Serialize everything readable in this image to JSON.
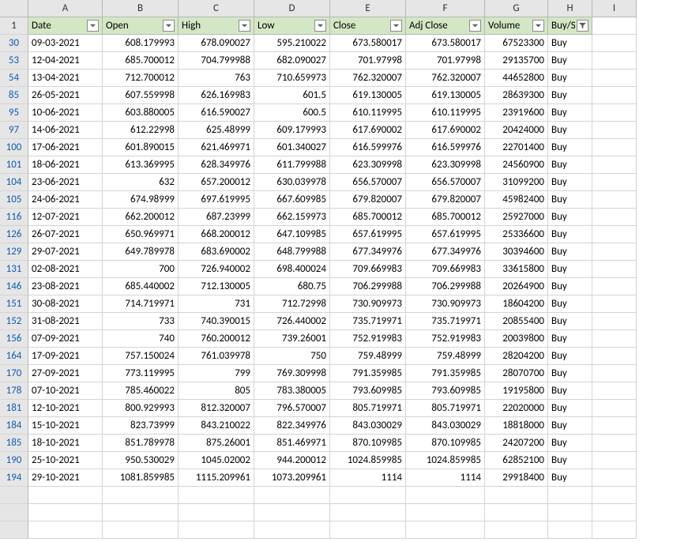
{
  "columns": [
    "A",
    "B",
    "C",
    "D",
    "E",
    "F",
    "G",
    "H",
    "I"
  ],
  "headers": [
    "Date",
    "Open",
    "High",
    "Low",
    "Close",
    "Adj Close",
    "Volume",
    "Buy/S"
  ],
  "header_row_num": 1,
  "rows": [
    {
      "n": 30,
      "date": "09-03-2021",
      "open": "608.179993",
      "high": "678.090027",
      "low": "595.210022",
      "close": "673.580017",
      "adj": "673.580017",
      "vol": "67523300",
      "bs": "Buy"
    },
    {
      "n": 53,
      "date": "12-04-2021",
      "open": "685.700012",
      "high": "704.799988",
      "low": "682.090027",
      "close": "701.97998",
      "adj": "701.97998",
      "vol": "29135700",
      "bs": "Buy"
    },
    {
      "n": 54,
      "date": "13-04-2021",
      "open": "712.700012",
      "high": "763",
      "low": "710.659973",
      "close": "762.320007",
      "adj": "762.320007",
      "vol": "44652800",
      "bs": "Buy"
    },
    {
      "n": 85,
      "date": "26-05-2021",
      "open": "607.559998",
      "high": "626.169983",
      "low": "601.5",
      "close": "619.130005",
      "adj": "619.130005",
      "vol": "28639300",
      "bs": "Buy"
    },
    {
      "n": 95,
      "date": "10-06-2021",
      "open": "603.880005",
      "high": "616.590027",
      "low": "600.5",
      "close": "610.119995",
      "adj": "610.119995",
      "vol": "23919600",
      "bs": "Buy"
    },
    {
      "n": 97,
      "date": "14-06-2021",
      "open": "612.22998",
      "high": "625.48999",
      "low": "609.179993",
      "close": "617.690002",
      "adj": "617.690002",
      "vol": "20424000",
      "bs": "Buy"
    },
    {
      "n": 100,
      "date": "17-06-2021",
      "open": "601.890015",
      "high": "621.469971",
      "low": "601.340027",
      "close": "616.599976",
      "adj": "616.599976",
      "vol": "22701400",
      "bs": "Buy"
    },
    {
      "n": 101,
      "date": "18-06-2021",
      "open": "613.369995",
      "high": "628.349976",
      "low": "611.799988",
      "close": "623.309998",
      "adj": "623.309998",
      "vol": "24560900",
      "bs": "Buy"
    },
    {
      "n": 104,
      "date": "23-06-2021",
      "open": "632",
      "high": "657.200012",
      "low": "630.039978",
      "close": "656.570007",
      "adj": "656.570007",
      "vol": "31099200",
      "bs": "Buy"
    },
    {
      "n": 105,
      "date": "24-06-2021",
      "open": "674.98999",
      "high": "697.619995",
      "low": "667.609985",
      "close": "679.820007",
      "adj": "679.820007",
      "vol": "45982400",
      "bs": "Buy"
    },
    {
      "n": 116,
      "date": "12-07-2021",
      "open": "662.200012",
      "high": "687.23999",
      "low": "662.159973",
      "close": "685.700012",
      "adj": "685.700012",
      "vol": "25927000",
      "bs": "Buy"
    },
    {
      "n": 126,
      "date": "26-07-2021",
      "open": "650.969971",
      "high": "668.200012",
      "low": "647.109985",
      "close": "657.619995",
      "adj": "657.619995",
      "vol": "25336600",
      "bs": "Buy"
    },
    {
      "n": 129,
      "date": "29-07-2021",
      "open": "649.789978",
      "high": "683.690002",
      "low": "648.799988",
      "close": "677.349976",
      "adj": "677.349976",
      "vol": "30394600",
      "bs": "Buy"
    },
    {
      "n": 131,
      "date": "02-08-2021",
      "open": "700",
      "high": "726.940002",
      "low": "698.400024",
      "close": "709.669983",
      "adj": "709.669983",
      "vol": "33615800",
      "bs": "Buy"
    },
    {
      "n": 146,
      "date": "23-08-2021",
      "open": "685.440002",
      "high": "712.130005",
      "low": "680.75",
      "close": "706.299988",
      "adj": "706.299988",
      "vol": "20264900",
      "bs": "Buy"
    },
    {
      "n": 151,
      "date": "30-08-2021",
      "open": "714.719971",
      "high": "731",
      "low": "712.72998",
      "close": "730.909973",
      "adj": "730.909973",
      "vol": "18604200",
      "bs": "Buy"
    },
    {
      "n": 152,
      "date": "31-08-2021",
      "open": "733",
      "high": "740.390015",
      "low": "726.440002",
      "close": "735.719971",
      "adj": "735.719971",
      "vol": "20855400",
      "bs": "Buy"
    },
    {
      "n": 156,
      "date": "07-09-2021",
      "open": "740",
      "high": "760.200012",
      "low": "739.26001",
      "close": "752.919983",
      "adj": "752.919983",
      "vol": "20039800",
      "bs": "Buy"
    },
    {
      "n": 164,
      "date": "17-09-2021",
      "open": "757.150024",
      "high": "761.039978",
      "low": "750",
      "close": "759.48999",
      "adj": "759.48999",
      "vol": "28204200",
      "bs": "Buy"
    },
    {
      "n": 170,
      "date": "27-09-2021",
      "open": "773.119995",
      "high": "799",
      "low": "769.309998",
      "close": "791.359985",
      "adj": "791.359985",
      "vol": "28070700",
      "bs": "Buy"
    },
    {
      "n": 178,
      "date": "07-10-2021",
      "open": "785.460022",
      "high": "805",
      "low": "783.380005",
      "close": "793.609985",
      "adj": "793.609985",
      "vol": "19195800",
      "bs": "Buy"
    },
    {
      "n": 181,
      "date": "12-10-2021",
      "open": "800.929993",
      "high": "812.320007",
      "low": "796.570007",
      "close": "805.719971",
      "adj": "805.719971",
      "vol": "22020000",
      "bs": "Buy"
    },
    {
      "n": 184,
      "date": "15-10-2021",
      "open": "823.73999",
      "high": "843.210022",
      "low": "822.349976",
      "close": "843.030029",
      "adj": "843.030029",
      "vol": "18818000",
      "bs": "Buy"
    },
    {
      "n": 185,
      "date": "18-10-2021",
      "open": "851.789978",
      "high": "875.26001",
      "low": "851.469971",
      "close": "870.109985",
      "adj": "870.109985",
      "vol": "24207200",
      "bs": "Buy"
    },
    {
      "n": 190,
      "date": "25-10-2021",
      "open": "950.530029",
      "high": "1045.02002",
      "low": "944.200012",
      "close": "1024.859985",
      "adj": "1024.859985",
      "vol": "62852100",
      "bs": "Buy"
    },
    {
      "n": 194,
      "date": "29-10-2021",
      "open": "1081.859985",
      "high": "1115.209961",
      "low": "1073.209961",
      "close": "1114",
      "adj": "1114",
      "vol": "29918400",
      "bs": "Buy"
    }
  ],
  "trailing_blank_rows": 3,
  "colors": {
    "header_bg": "#d4e7c5",
    "col_row_head_bg": "#e6e6e6",
    "grid_border": "#d4d4d4",
    "strong_border": "#b7b7b7",
    "row_head_blue": "#0f5bb5"
  }
}
